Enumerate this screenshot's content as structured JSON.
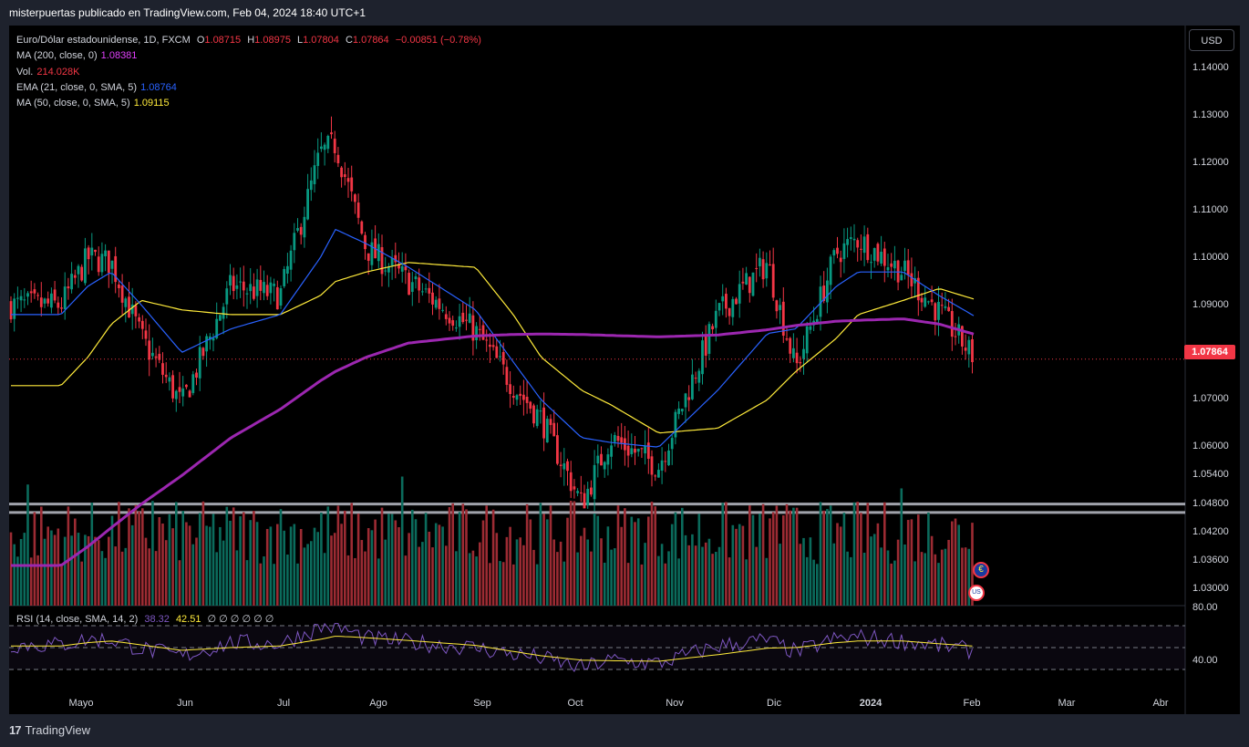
{
  "header": {
    "publisher_line": "misterpuertas publicado en TradingView.com, Feb 04, 2024 18:40 UTC+1"
  },
  "footer": {
    "logo_mark": "17",
    "logo_text": "TradingView"
  },
  "symbol": {
    "name": "Euro/Dólar estadounidense, 1D, FXCM",
    "o_label": "O",
    "o_value": "1.08715",
    "h_label": "H",
    "h_value": "1.08975",
    "l_label": "L",
    "l_value": "1.07804",
    "c_label": "C",
    "c_value": "1.07864",
    "change": "−0.00851 (−0.78%)"
  },
  "indicators": [
    {
      "label": "MA (200, close, 0)",
      "value": "1.08381",
      "color": "#e040fb"
    },
    {
      "label": "Vol.",
      "value": "214.028K",
      "color": "#f23645"
    },
    {
      "label": "EMA (21, close, 0, SMA, 5)",
      "value": "1.08764",
      "color": "#2962ff"
    },
    {
      "label": "MA (50, close, 0, SMA, 5)",
      "value": "1.09115",
      "color": "#ffeb3b"
    }
  ],
  "currency_button": "USD",
  "current_price_tag": "1.07864",
  "rsi": {
    "label": "RSI (14, close, SMA, 14, 2)",
    "value1": "38.32",
    "value2": "42.51",
    "extra": "∅ ∅ ∅ ∅ ∅ ∅",
    "top_tick": "80.00",
    "bottom_tick": "40.00"
  },
  "flags": {
    "eu": "€",
    "us": "US"
  },
  "colors": {
    "up": "#089981",
    "down": "#f23645",
    "ma200": "#9c27b0",
    "ema21": "#2962ff",
    "ma50": "#ffeb3b",
    "rsi": "#7e57c2",
    "rsi_ma": "#ffeb3b"
  },
  "chart_data": {
    "type": "candlestick",
    "title": "Euro/Dólar estadounidense, 1D, FXCM",
    "y_axis_ticks": [
      "1.14000",
      "1.13000",
      "1.12000",
      "1.11000",
      "1.10000",
      "1.09000",
      "1.08000",
      "1.07000",
      "1.06000",
      "1.05400",
      "1.04800",
      "1.04200",
      "1.03600",
      "1.03000"
    ],
    "x_axis_ticks": [
      "Mayo",
      "Jun",
      "Jul",
      "Ago",
      "Sep",
      "Oct",
      "Nov",
      "Dic",
      "2024",
      "Feb",
      "Mar",
      "Abr"
    ],
    "ylim": [
      1.026,
      1.144
    ],
    "support_levels": [
      1.048,
      1.0462
    ],
    "key_points": {
      "dates": [
        "Apr 25",
        "May 3",
        "May 10",
        "May 19",
        "May 31",
        "Jun 15",
        "Jun 30",
        "Jul 13",
        "Jul 18",
        "Jul 28",
        "Aug 10",
        "Aug 30",
        "Sep 11",
        "Sep 20",
        "Oct 3",
        "Oct 12",
        "Oct 27",
        "Nov 14",
        "Nov 29",
        "Dic 8",
        "Dic 21",
        "Dic 28",
        "Ene 11",
        "Ene 22",
        "Feb 2"
      ],
      "close": [
        1.09,
        1.1,
        1.099,
        1.083,
        1.069,
        1.094,
        1.092,
        1.122,
        1.124,
        1.102,
        1.095,
        1.0845,
        1.073,
        1.066,
        1.048,
        1.062,
        1.056,
        1.088,
        1.099,
        1.0765,
        1.101,
        1.104,
        1.097,
        1.0885,
        1.0786
      ],
      "ma200": [
        1.035,
        1.039,
        1.043,
        1.048,
        1.054,
        1.062,
        1.068,
        1.074,
        1.076,
        1.079,
        1.082,
        1.0835,
        1.0838,
        1.0839,
        1.0838,
        1.0836,
        1.0833,
        1.0837,
        1.0848,
        1.0857,
        1.0866,
        1.0868,
        1.0871,
        1.086,
        1.0838
      ],
      "ema21": [
        1.088,
        1.094,
        1.097,
        1.09,
        1.08,
        1.085,
        1.088,
        1.1,
        1.106,
        1.103,
        1.098,
        1.089,
        1.078,
        1.07,
        1.062,
        1.061,
        1.06,
        1.072,
        1.084,
        1.085,
        1.094,
        1.097,
        1.097,
        1.092,
        1.0876
      ],
      "ma50": [
        1.073,
        1.079,
        1.086,
        1.091,
        1.089,
        1.088,
        1.088,
        1.092,
        1.095,
        1.097,
        1.099,
        1.098,
        1.088,
        1.079,
        1.072,
        1.069,
        1.063,
        1.064,
        1.07,
        1.076,
        1.083,
        1.088,
        1.091,
        1.0935,
        1.0912
      ]
    },
    "rsi_range": [
      20,
      90
    ],
    "rsi_levels": [
      70,
      50,
      30
    ]
  }
}
